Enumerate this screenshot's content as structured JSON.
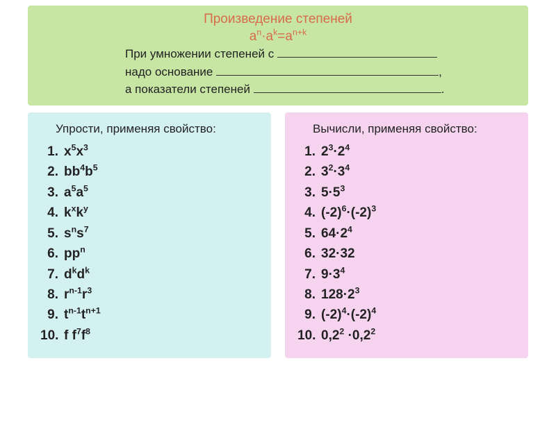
{
  "header": {
    "bg": "#c7e6a4",
    "title_color": "#d86b4a",
    "text_color": "#222222",
    "title_line1": "Произведение степеней",
    "title_line2_html": "a<sup>n</sup>·a<sup>k</sup>=a<sup>n+k</sup>",
    "sub1_prefix": "При умножении степеней с ",
    "sub1_blank_width": 230,
    "sub2_prefix": "надо основание ",
    "sub2_blank_width": 320,
    "sub2_suffix": ",",
    "sub3_prefix": "а показатели степеней ",
    "sub3_blank_width": 270,
    "sub3_suffix": "."
  },
  "left": {
    "bg": "#d4f1f2",
    "text_color": "#222222",
    "title": "Упрости, применяя свойство:",
    "items": [
      {
        "n": "1.",
        "html": "x<sup>5</sup>x<sup>3</sup>"
      },
      {
        "n": "2.",
        "html": "bb<sup>4</sup>b<sup>5</sup>"
      },
      {
        "n": "3.",
        "html": "a<sup>5</sup>a<sup>5</sup>"
      },
      {
        "n": "4.",
        "html": "k<sup>x</sup>k<sup>y</sup>"
      },
      {
        "n": "5.",
        "html": "s<sup>n</sup>s<sup>7</sup>"
      },
      {
        "n": "6.",
        "html": "pp<sup>n</sup>"
      },
      {
        "n": "7.",
        "html": "d<sup>k</sup>d<sup>k</sup>"
      },
      {
        "n": "8.",
        "html": "r<sup>n-1</sup>r<sup>3</sup>"
      },
      {
        "n": "9.",
        "html": "t<sup>n-1</sup>t<sup>n+1</sup>"
      },
      {
        "n": "10.",
        "html": "f f<sup>7</sup>f<sup>8</sup>"
      }
    ]
  },
  "right": {
    "bg": "#f6d4f0",
    "text_color": "#222222",
    "title": "Вычисли, применяя свойство:",
    "items": [
      {
        "n": "1.",
        "html": "2<sup>3</sup>·2<sup>4</sup>"
      },
      {
        "n": "2.",
        "html": "3<sup>2</sup>·3<sup>4</sup>"
      },
      {
        "n": "3.",
        "html": "5·5<sup>3</sup>"
      },
      {
        "n": "4.",
        "html": "(-2)<sup>6</sup>·(-2)<sup>3</sup>"
      },
      {
        "n": "5.",
        "html": "64·2<sup>4</sup>"
      },
      {
        "n": "6.",
        "html": "32·32"
      },
      {
        "n": "7.",
        "html": "9·3<sup>4</sup>"
      },
      {
        "n": "8.",
        "html": "128·2<sup>3</sup>"
      },
      {
        "n": "9.",
        "html": "(-2)<sup>4</sup>·(-2)<sup>4</sup>"
      },
      {
        "n": "10.",
        "html": "0,2<sup>2</sup> ·0,2<sup>2</sup>"
      }
    ]
  }
}
